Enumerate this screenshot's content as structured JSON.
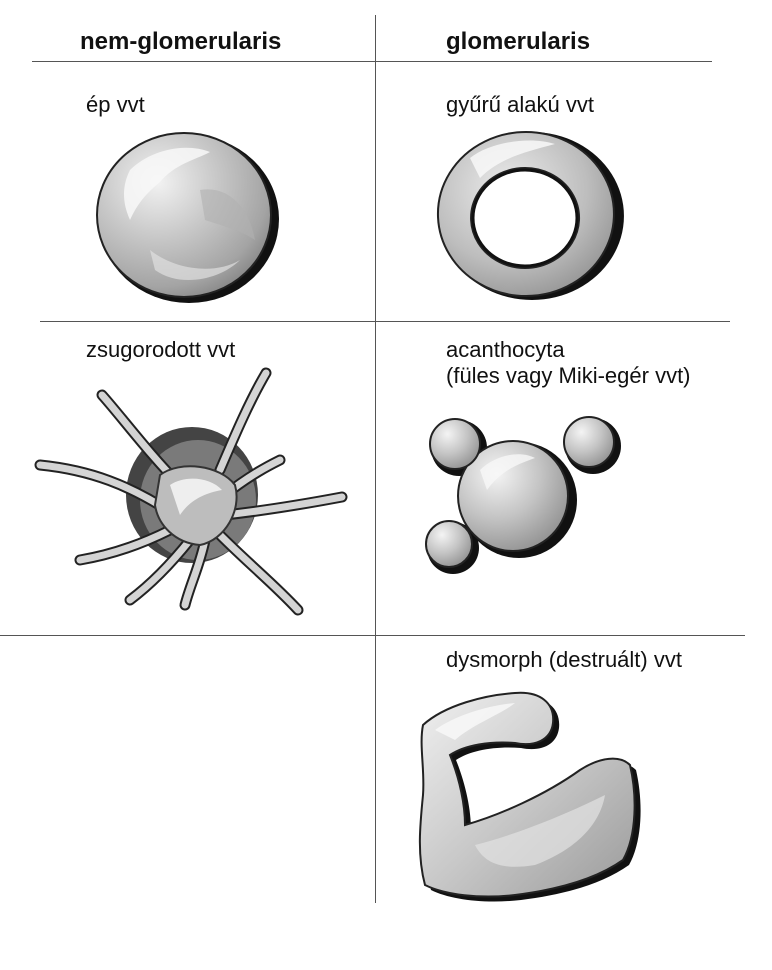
{
  "columns": {
    "left": "nem-glomerularis",
    "right": "glomerularis"
  },
  "cells": {
    "normal": "ép vvt",
    "ring": "gyűrű alakú vvt",
    "shrunken": "zsugorodott vvt",
    "acanthocyte_line1": "acanthocyta",
    "acanthocyte_line2": "(füles vagy Miki-egér vvt)",
    "dysmorphic": "dysmorph (destruált) vvt"
  }
}
